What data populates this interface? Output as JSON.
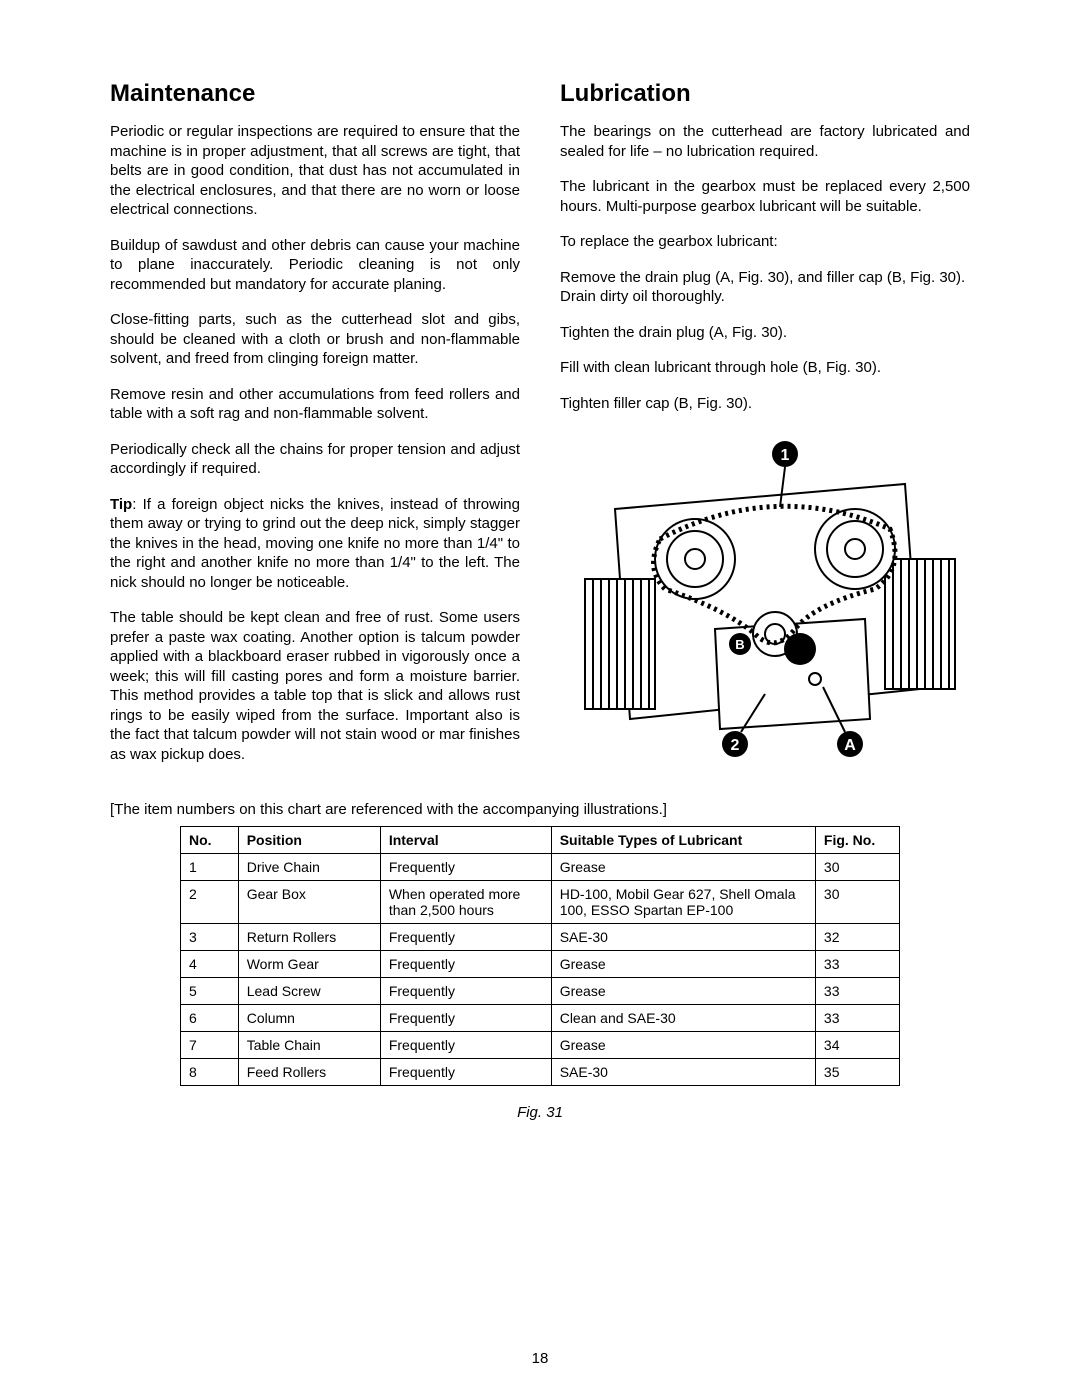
{
  "left": {
    "heading": "Maintenance",
    "p1": "Periodic or regular inspections are required to ensure that the machine is in proper adjustment, that all screws are tight, that belts are in good condition, that dust has not accumulated in the electrical enclosures, and that there are no worn or loose electrical connections.",
    "p2": "Buildup of sawdust and other debris can cause your machine to plane inaccurately. Periodic cleaning is not only recommended but mandatory for accurate planing.",
    "p3": "Close-fitting parts, such as the cutterhead slot and gibs, should be cleaned with a cloth or brush and non-flammable solvent, and freed from clinging foreign matter.",
    "p4": "Remove resin and other accumulations from feed rollers and table with a soft rag and non-flammable solvent.",
    "p5": "Periodically check all the chains for proper tension and adjust accordingly if required.",
    "tip_label": "Tip",
    "tip": ": If a foreign object nicks the knives, instead of throwing them away or trying to grind out the deep nick, simply stagger the knives in the head, moving one knife no more than 1/4\" to the right and another knife no more than 1/4\" to the left. The nick should no longer be noticeable.",
    "p7": "The table should be kept clean and free of rust. Some users prefer a paste wax coating. Another option is talcum powder applied with a blackboard eraser rubbed in vigorously once a week; this will fill casting pores and form a moisture barrier. This method provides a table top that is slick and allows rust rings to be easily wiped from the surface. Important also is the fact that talcum powder will not stain wood or mar finishes as wax pickup does."
  },
  "right": {
    "heading": "Lubrication",
    "p1": "The bearings on the cutterhead are factory lubricated and sealed for life – no lubrication required.",
    "p2": "The lubricant in the gearbox must be replaced every 2,500 hours. Multi-purpose gearbox lubricant will be suitable.",
    "p3": "To replace the gearbox lubricant:",
    "p4": "Remove the drain plug (A, Fig. 30), and filler cap (B, Fig. 30). Drain dirty oil thoroughly.",
    "p5": "Tighten the drain plug (A, Fig. 30).",
    "p6": "Fill with clean lubricant through hole (B, Fig. 30).",
    "p7": "Tighten filler cap (B, Fig. 30)."
  },
  "table_note": "[The item numbers on this chart are referenced with the accompanying illustrations.]",
  "table": {
    "columns": [
      "No.",
      "Position",
      "Interval",
      "Suitable Types of Lubricant",
      "Fig. No."
    ],
    "rows": [
      [
        "1",
        "Drive Chain",
        "Frequently",
        "Grease",
        "30"
      ],
      [
        "2",
        "Gear Box",
        "When operated more than 2,500 hours",
        "HD-100, Mobil Gear 627, Shell Omala 100, ESSO Spartan EP-100",
        "30"
      ],
      [
        "3",
        "Return Rollers",
        "Frequently",
        "SAE-30",
        "32"
      ],
      [
        "4",
        "Worm Gear",
        "Frequently",
        "Grease",
        "33"
      ],
      [
        "5",
        "Lead Screw",
        "Frequently",
        "Grease",
        "33"
      ],
      [
        "6",
        "Column",
        "Frequently",
        "Clean and SAE-30",
        "33"
      ],
      [
        "7",
        "Table Chain",
        "Frequently",
        "Grease",
        "34"
      ],
      [
        "8",
        "Feed Rollers",
        "Frequently",
        "SAE-30",
        "35"
      ]
    ]
  },
  "fig_caption": "Fig. 31",
  "page_number": "18",
  "callouts": {
    "one": "1",
    "two": "2",
    "A": "A",
    "B": "B"
  }
}
